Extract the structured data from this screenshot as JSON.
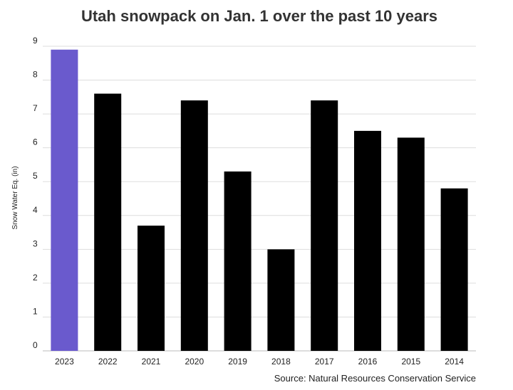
{
  "chart_data": {
    "type": "bar",
    "title": "Utah snowpack on Jan. 1 over the past 10 years",
    "ylabel": "Snow Water Eq. (in)",
    "xlabel": "",
    "source": "Source: Natural Resources Conservation Service",
    "categories": [
      "2023",
      "2022",
      "2021",
      "2020",
      "2019",
      "2018",
      "2017",
      "2016",
      "2015",
      "2014"
    ],
    "values": [
      8.9,
      7.6,
      3.7,
      7.4,
      5.3,
      3.0,
      7.4,
      6.5,
      6.3,
      4.8
    ],
    "yticks": [
      0,
      1,
      2,
      3,
      4,
      5,
      6,
      7,
      8,
      9
    ],
    "ylim": [
      0,
      9
    ],
    "grid": true,
    "highlight_category": "2023",
    "colors": {
      "highlight": "#6a5acd",
      "bar": "#000000",
      "grid": "#dddddd"
    }
  }
}
